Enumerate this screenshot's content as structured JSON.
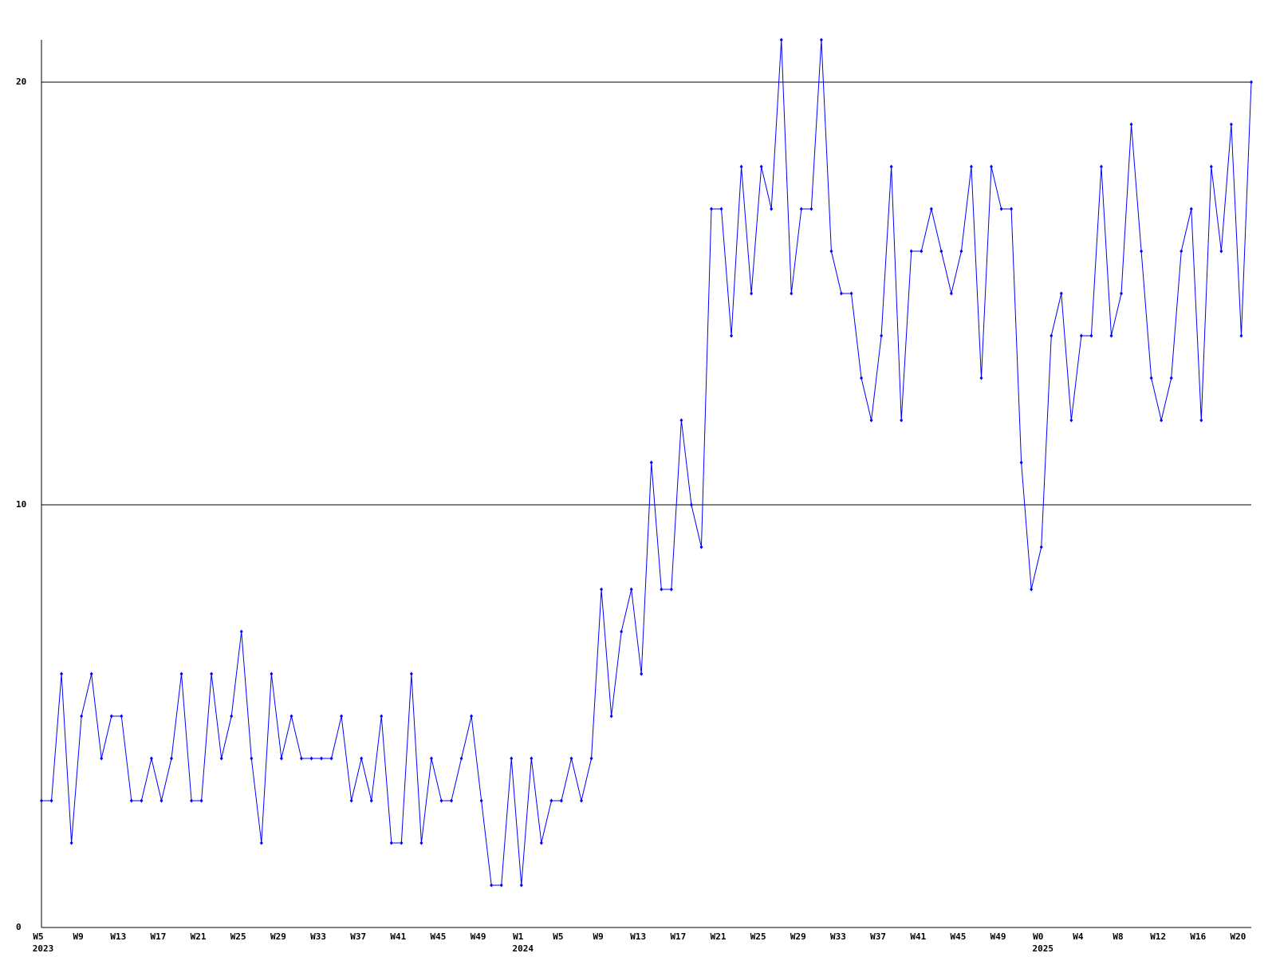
{
  "chart_data": {
    "type": "line",
    "categories": [
      "W5",
      null,
      null,
      null,
      "W9",
      null,
      null,
      null,
      "W13",
      null,
      null,
      null,
      "W17",
      null,
      null,
      null,
      "W21",
      null,
      null,
      null,
      "W25",
      null,
      null,
      null,
      "W29",
      null,
      null,
      null,
      "W33",
      null,
      null,
      null,
      "W37",
      null,
      null,
      null,
      "W41",
      null,
      null,
      null,
      "W45",
      null,
      null,
      null,
      "W49",
      null,
      null,
      null,
      "W1",
      null,
      null,
      null,
      "W5",
      null,
      null,
      null,
      "W9",
      null,
      null,
      null,
      "W13",
      null,
      null,
      null,
      "W17",
      null,
      null,
      null,
      "W21",
      null,
      null,
      null,
      "W25",
      null,
      null,
      null,
      "W29",
      null,
      null,
      null,
      "W33",
      null,
      null,
      null,
      "W37",
      null,
      null,
      null,
      "W41",
      null,
      null,
      null,
      "W45",
      null,
      null,
      null,
      "W49",
      null,
      null,
      null,
      "W0",
      null,
      null,
      null,
      "W4",
      null,
      null,
      null,
      "W8",
      null,
      null,
      null,
      "W12",
      null,
      null,
      null,
      "W16",
      null,
      null,
      null,
      "W20",
      null
    ],
    "years": [
      "2023",
      null,
      null,
      null,
      null,
      null,
      null,
      null,
      null,
      null,
      null,
      null,
      null,
      null,
      null,
      null,
      null,
      null,
      null,
      null,
      null,
      null,
      null,
      null,
      null,
      null,
      null,
      null,
      null,
      null,
      null,
      null,
      null,
      null,
      null,
      null,
      null,
      null,
      null,
      null,
      null,
      null,
      null,
      null,
      null,
      null,
      null,
      null,
      "2024",
      null,
      null,
      null,
      null,
      null,
      null,
      null,
      null,
      null,
      null,
      null,
      null,
      null,
      null,
      null,
      null,
      null,
      null,
      null,
      null,
      null,
      null,
      null,
      null,
      null,
      null,
      null,
      null,
      null,
      null,
      null,
      null,
      null,
      null,
      null,
      null,
      null,
      null,
      null,
      null,
      null,
      null,
      null,
      null,
      null,
      null,
      null,
      null,
      null,
      null,
      null,
      "2025",
      null,
      null,
      null,
      null,
      null,
      null,
      null,
      null,
      null,
      null,
      null,
      null,
      null,
      null,
      null,
      null,
      null,
      null,
      null,
      null,
      null
    ],
    "series": [
      {
        "color": "#0000ff",
        "values": [
          3,
          3,
          6,
          2,
          5,
          6,
          4,
          5,
          5,
          3,
          3,
          4,
          3,
          4,
          6,
          3,
          3,
          6,
          4,
          5,
          7,
          4,
          2,
          6,
          4,
          5,
          4,
          4,
          4,
          4,
          5,
          3,
          4,
          3,
          5,
          2,
          2,
          6,
          2,
          4,
          3,
          3,
          4,
          5,
          3,
          1,
          1,
          4,
          1,
          4,
          2,
          3,
          3,
          4,
          3,
          4,
          8,
          5,
          7,
          8,
          6,
          11,
          8,
          8,
          12,
          10,
          9,
          17,
          17,
          14,
          18,
          15,
          18,
          17,
          21,
          15,
          17,
          17,
          21,
          16,
          15,
          15,
          13,
          12,
          14,
          18,
          12,
          16,
          16,
          17,
          16,
          15,
          16,
          18,
          13,
          18,
          17,
          17,
          11,
          8,
          9,
          14,
          15,
          12,
          14,
          14,
          18,
          14,
          15,
          19,
          16,
          13,
          12,
          13,
          16,
          17,
          12,
          18,
          16,
          19,
          14,
          20
        ]
      }
    ],
    "ylim": [
      0,
      21
    ],
    "yticks": [
      0,
      10,
      20
    ],
    "grid": true
  }
}
